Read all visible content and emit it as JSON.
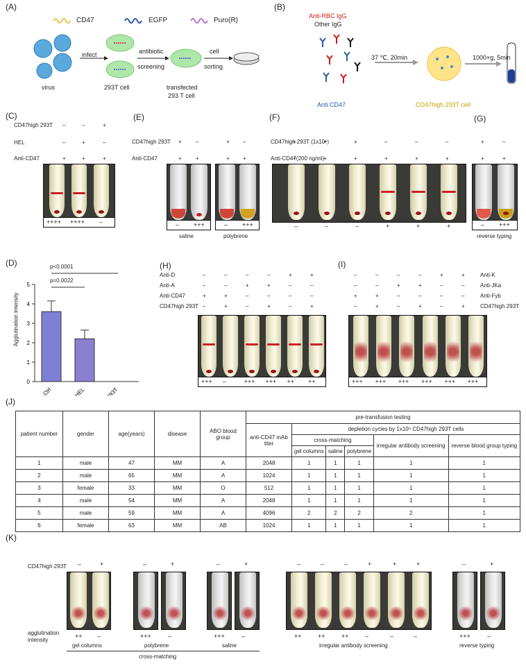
{
  "panels": {
    "A": "(A)",
    "B": "(B)",
    "C": "(C)",
    "D": "(D)",
    "E": "(E)",
    "F": "(F)",
    "G": "(G)",
    "H": "(H)",
    "I": "(I)",
    "J": "(J)",
    "K": "(K)"
  },
  "panelA": {
    "legend": [
      "CD47",
      "EGFP",
      "Puro(R)"
    ],
    "legend_colors": [
      "#f3c24b",
      "#2c5aa0",
      "#b778d6"
    ],
    "infect": "infect",
    "antibiotic": "antibiotic",
    "screening": "screening",
    "cell": "cell",
    "sorting": "sorting",
    "virus": "virus",
    "cell293": "293T cell",
    "transfected1": "transfected",
    "transfected2": "293 T cell"
  },
  "panelB": {
    "anti_rbc": "Anti-RBC IgG",
    "other": "Other IgG",
    "anti_cd47": "Anti CD47",
    "cond1": "37 ℃, 20min",
    "cond2": "1000×g, 5min",
    "cell_label": "CD47high 293T cell"
  },
  "panelC": {
    "rows": [
      {
        "label": "CD47high 293T",
        "vals": [
          "–",
          "–",
          "+"
        ]
      },
      {
        "label": "HEL",
        "vals": [
          "–",
          "+",
          "–"
        ]
      },
      {
        "label": "Anti-CD47",
        "vals": [
          "+",
          "+",
          "+"
        ]
      }
    ],
    "scores": [
      "++++",
      "++++",
      "–"
    ]
  },
  "panelD": {
    "ylabel": "Agglutination intensity",
    "p1": "p<0.0001",
    "p2": "p=0.0022",
    "yticks": [
      "0",
      "1",
      "2",
      "3",
      "4",
      "5"
    ]
  },
  "chart_data": {
    "type": "bar",
    "categories": [
      "Ctrl",
      "HEL",
      "CD47high 293T"
    ],
    "values": [
      3.6,
      2.2,
      0
    ],
    "errors": [
      0.55,
      0.45,
      0
    ],
    "ylabel": "Agglutination intensity",
    "ylim": [
      0,
      5
    ],
    "colors": [
      "#7f7fd6",
      "#8a7fd1",
      "#7f7fd6"
    ],
    "grid": false
  },
  "panelE": {
    "rows": [
      {
        "label": "CD47high 293T",
        "vals": [
          "+",
          "–",
          "+",
          "–"
        ]
      },
      {
        "label": "Anti-CD47",
        "vals": [
          "+",
          "+",
          "+",
          "+"
        ]
      }
    ],
    "scores": [
      "–",
      "+++",
      "–",
      "+++"
    ],
    "captions": [
      "saline",
      "polybrene"
    ]
  },
  "panelF": {
    "rows": [
      {
        "label": "CD47high 293T (1x10⁶)",
        "vals": [
          "+",
          "+",
          "+",
          "–",
          "–",
          "–"
        ]
      },
      {
        "label": "Anti-CD47(200 ng/ml)",
        "vals": [
          "+",
          "+",
          "+",
          "+",
          "+",
          "+"
        ]
      }
    ],
    "scores": [
      "–",
      "–",
      "–",
      "+",
      "+",
      "+"
    ]
  },
  "panelG": {
    "vals1": [
      "+",
      "–"
    ],
    "vals2": [
      "+",
      "+"
    ],
    "scores": [
      "–",
      "+++"
    ],
    "caption": "reverse typing"
  },
  "panelH": {
    "rows": [
      {
        "label": "Anti-D",
        "vals": [
          "–",
          "–",
          "–",
          "–",
          "+",
          "+"
        ]
      },
      {
        "label": "Anti-A",
        "vals": [
          "–",
          "–",
          "+",
          "+",
          "–",
          "–"
        ]
      },
      {
        "label": "Anti-CD47",
        "vals": [
          "+",
          "+",
          "–",
          "–",
          "–",
          "–"
        ]
      },
      {
        "label": "CD47high 293T",
        "vals": [
          "–",
          "+",
          "–",
          "+",
          "–",
          "+"
        ]
      }
    ],
    "scores": [
      "+++",
      "–",
      "+++",
      "+++",
      "++",
      "++"
    ]
  },
  "panelI": {
    "rows": [
      {
        "label": "Anti-K",
        "vals": [
          "–",
          "–",
          "–",
          "–",
          "+",
          "+"
        ]
      },
      {
        "label": "Anti-JKa",
        "vals": [
          "–",
          "–",
          "+",
          "+",
          "–",
          "–"
        ]
      },
      {
        "label": "Anti-Fyb",
        "vals": [
          "+",
          "+",
          "–",
          "–",
          "–",
          "–"
        ]
      },
      {
        "label": "CD47high 293T",
        "vals": [
          "–",
          "+",
          "–",
          "+",
          "–",
          "+"
        ]
      }
    ],
    "scores": [
      "+++",
      "+++",
      "+++",
      "+++",
      "+++",
      "+++"
    ]
  },
  "panelJ": {
    "h_patient": "patient number",
    "h_gender": "gender",
    "h_age": "age(years)",
    "h_disease": "disease",
    "h_abo": "ABO blood group",
    "h_pre": "pre-transfusion testing",
    "h_titer": "anti-CD47 mAb titer",
    "h_depl": "depletion cycles by 1x10⁶ CD47high 293T cells",
    "h_cross": "cross-matching",
    "h_gel": "gel columns",
    "h_saline": "saline",
    "h_poly": "polybrene",
    "h_irr": "irregular antibody screening",
    "h_rev": "reverse blood group typing",
    "rows": [
      [
        "1",
        "male",
        "47",
        "MM",
        "A",
        "2048",
        "1",
        "1",
        "1",
        "1",
        "1"
      ],
      [
        "2",
        "male",
        "65",
        "MM",
        "A",
        "1024",
        "1",
        "1",
        "1",
        "1",
        "1"
      ],
      [
        "3",
        "female",
        "33",
        "MM",
        "O",
        "512",
        "1",
        "1",
        "1",
        "1",
        "1"
      ],
      [
        "4",
        "male",
        "54",
        "MM",
        "A",
        "2048",
        "1",
        "1",
        "1",
        "1",
        "1"
      ],
      [
        "5",
        "male",
        "59",
        "MM",
        "A",
        "4096",
        "2",
        "2",
        "2",
        "2",
        "1"
      ],
      [
        "6",
        "female",
        "63",
        "MM",
        "AB",
        "1024",
        "1",
        "1",
        "1",
        "1",
        "1"
      ]
    ]
  },
  "panelK": {
    "row_label": "CD47high 293T",
    "agg1": "agglutination",
    "agg2": "intensity",
    "signs": [
      "–",
      "+",
      "–",
      "+",
      "–",
      "+",
      "–",
      "–",
      "–",
      "+",
      "+",
      "+",
      "–",
      "+"
    ],
    "scores": [
      "++",
      "–",
      "+++",
      "–",
      "+++",
      "–",
      "++",
      "++",
      "++",
      "–",
      "–",
      "–",
      "+++",
      "–"
    ],
    "captions": {
      "gel": "gel columns",
      "poly": "polybrene",
      "saline": "saline",
      "cross": "cross-matching",
      "irr": "irregular antibody screening",
      "rev": "reverse typing"
    }
  }
}
